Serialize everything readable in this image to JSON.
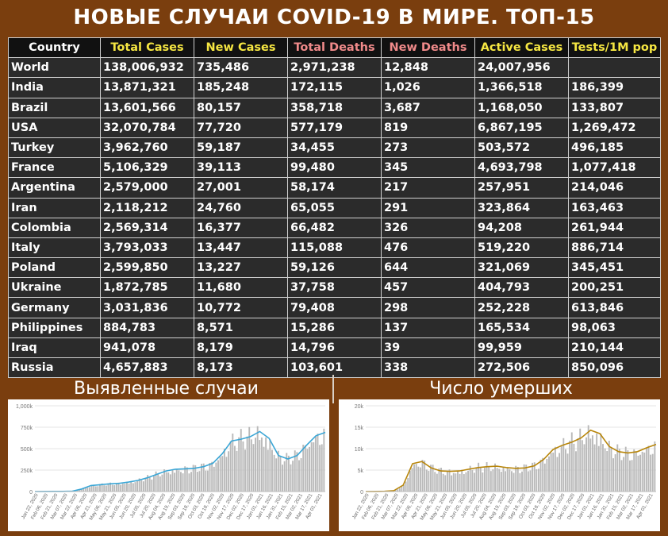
{
  "title": "НОВЫЕ СЛУЧАИ COVID-19 В МИРЕ. ТОП-15",
  "table": {
    "headers": [
      "Country",
      "Total Cases",
      "New Cases",
      "Total Deaths",
      "New Deaths",
      "Active Cases",
      "Tests/1M pop"
    ],
    "header_colors": [
      "#ffffff",
      "#f5e642",
      "#f5e642",
      "#f08a8a",
      "#f08a8a",
      "#f5e642",
      "#f5e642"
    ],
    "rows": [
      [
        "World",
        "138,006,932",
        "735,486",
        "2,971,238",
        "12,848",
        "24,007,956",
        ""
      ],
      [
        "India",
        "13,871,321",
        "185,248",
        "172,115",
        "1,026",
        "1,366,518",
        "186,399"
      ],
      [
        "Brazil",
        "13,601,566",
        "80,157",
        "358,718",
        "3,687",
        "1,168,050",
        "133,807"
      ],
      [
        "USA",
        "32,070,784",
        "77,720",
        "577,179",
        "819",
        "6,867,195",
        "1,269,472"
      ],
      [
        "Turkey",
        "3,962,760",
        "59,187",
        "34,455",
        "273",
        "503,572",
        "496,185"
      ],
      [
        "France",
        "5,106,329",
        "39,113",
        "99,480",
        "345",
        "4,693,798",
        "1,077,418"
      ],
      [
        "Argentina",
        "2,579,000",
        "27,001",
        "58,174",
        "217",
        "257,951",
        "214,046"
      ],
      [
        "Iran",
        "2,118,212",
        "24,760",
        "65,055",
        "291",
        "323,864",
        "163,463"
      ],
      [
        "Colombia",
        "2,569,314",
        "16,377",
        "66,482",
        "326",
        "94,208",
        "261,944"
      ],
      [
        "Italy",
        "3,793,033",
        "13,447",
        "115,088",
        "476",
        "519,220",
        "886,714"
      ],
      [
        "Poland",
        "2,599,850",
        "13,227",
        "59,126",
        "644",
        "321,069",
        "345,451"
      ],
      [
        "Ukraine",
        "1,872,785",
        "11,680",
        "37,758",
        "457",
        "404,793",
        "200,251"
      ],
      [
        "Germany",
        "3,031,836",
        "10,772",
        "79,408",
        "298",
        "252,228",
        "613,846"
      ],
      [
        "Philippines",
        "884,783",
        "8,571",
        "15,286",
        "137",
        "165,534",
        "98,063"
      ],
      [
        "Iraq",
        "941,078",
        "8,179",
        "14,796",
        "39",
        "99,959",
        "210,144"
      ],
      [
        "Russia",
        "4,657,883",
        "8,173",
        "103,601",
        "338",
        "272,506",
        "850,096"
      ]
    ]
  },
  "chart_data": [
    {
      "type": "bar",
      "title": "Выявленные случаи",
      "y_ticks": [
        "0",
        "250k",
        "500k",
        "750k",
        "1,000k"
      ],
      "ylim": [
        0,
        1000000
      ],
      "x_tick_labels": [
        "Jan 22, 2020",
        "Feb 06, 2020",
        "Feb 21, 2020",
        "Mar 07, 2020",
        "Mar 22, 2020",
        "Apr 06, 2020",
        "Apr 21, 2020",
        "May 06, 2020",
        "May 21, 2020",
        "Jun 05, 2020",
        "Jun 20, 2020",
        "Jul 05, 2020",
        "Jul 20, 2020",
        "Aug 04, 2020",
        "Aug 19, 2020",
        "Sep 03, 2020",
        "Sep 18, 2020",
        "Oct 03, 2020",
        "Oct 18, 2020",
        "Nov 02, 2020",
        "Nov 17, 2020",
        "Dec 02, 2020",
        "Dec 17, 2020",
        "Jan 01, 2021",
        "Jan 16, 2021",
        "Jan 31, 2021",
        "Feb 15, 2021",
        "Mar 02, 2021",
        "Mar 17, 2021",
        "Apr 01, 2021"
      ],
      "bar_color": "#b9b9b9",
      "line_color": "#3aa6d6",
      "moving_avg": [
        0,
        1000,
        2000,
        2000,
        5000,
        30000,
        70000,
        80000,
        90000,
        95000,
        110000,
        130000,
        160000,
        200000,
        240000,
        260000,
        265000,
        270000,
        290000,
        330000,
        440000,
        590000,
        610000,
        640000,
        700000,
        620000,
        420000,
        380000,
        420000,
        540000,
        650000,
        690000
      ]
    },
    {
      "type": "bar",
      "title": "Число умерших",
      "y_ticks": [
        "0",
        "5k",
        "10k",
        "15k",
        "20k"
      ],
      "ylim": [
        0,
        20000
      ],
      "x_tick_labels": [
        "Jan 22, 2020",
        "Feb 06, 2020",
        "Feb 21, 2020",
        "Mar 07, 2020",
        "Mar 22, 2020",
        "Apr 06, 2020",
        "Apr 21, 2020",
        "May 06, 2020",
        "May 21, 2020",
        "Jun 05, 2020",
        "Jun 20, 2020",
        "Jul 05, 2020",
        "Jul 20, 2020",
        "Aug 04, 2020",
        "Aug 19, 2020",
        "Sep 03, 2020",
        "Sep 18, 2020",
        "Oct 03, 2020",
        "Oct 18, 2020",
        "Nov 02, 2020",
        "Nov 17, 2020",
        "Dec 02, 2020",
        "Dec 17, 2020",
        "Jan 01, 2021",
        "Jan 16, 2021",
        "Jan 31, 2021",
        "Feb 15, 2021",
        "Mar 02, 2021",
        "Mar 17, 2021",
        "Apr 01, 2021"
      ],
      "bar_color": "#b9b9b9",
      "line_color": "#b8860b",
      "moving_avg": [
        0,
        20,
        60,
        200,
        1500,
        6500,
        7000,
        5500,
        4800,
        4700,
        4800,
        5200,
        5600,
        5800,
        5900,
        5600,
        5400,
        5500,
        6000,
        7500,
        9800,
        10800,
        11500,
        12500,
        14300,
        13500,
        10500,
        9300,
        9000,
        9300,
        10200,
        11000
      ]
    }
  ]
}
